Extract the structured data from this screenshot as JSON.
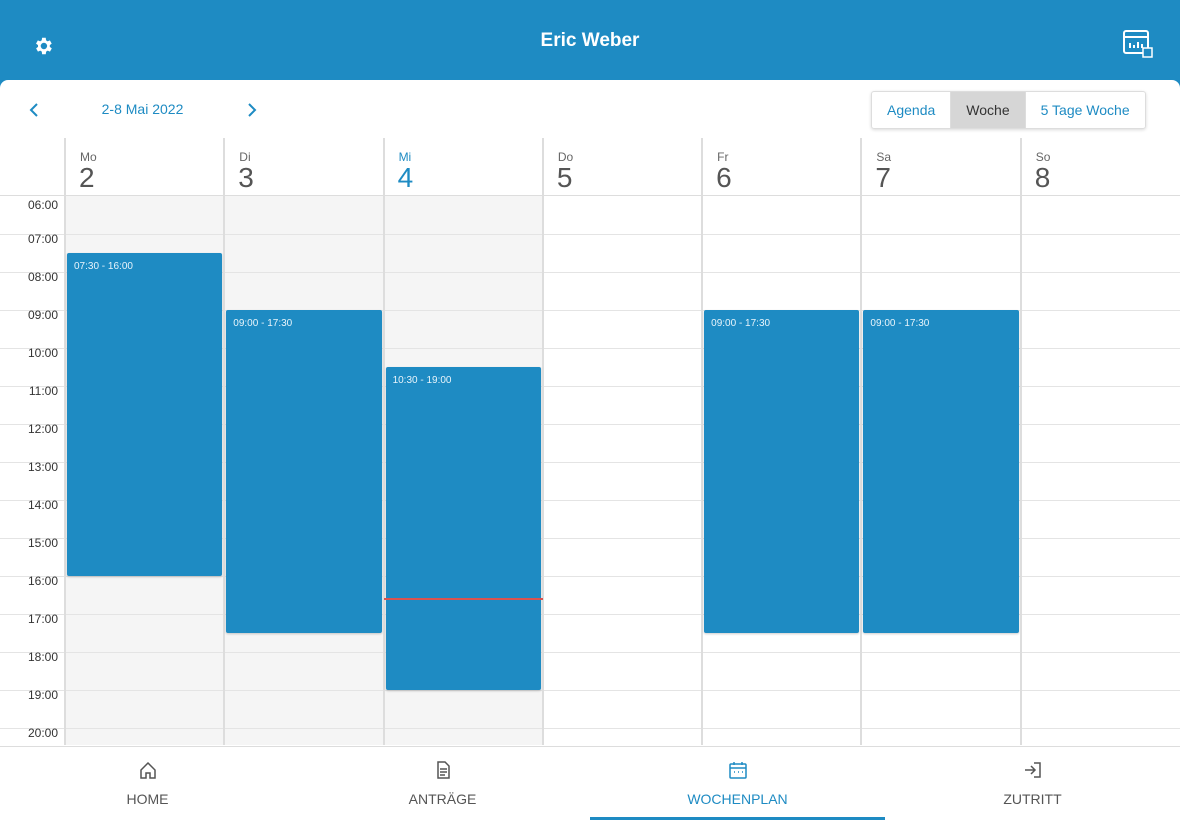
{
  "header": {
    "title": "Eric Weber"
  },
  "toolbar": {
    "date_range": "2-8 Mai 2022",
    "views": [
      {
        "label": "Agenda"
      },
      {
        "label": "Woche",
        "active": true
      },
      {
        "label": "5 Tage Woche"
      }
    ]
  },
  "calendar": {
    "hours": [
      "06:00",
      "07:00",
      "08:00",
      "09:00",
      "10:00",
      "11:00",
      "12:00",
      "13:00",
      "14:00",
      "15:00",
      "16:00",
      "17:00",
      "18:00",
      "19:00",
      "20:00"
    ],
    "days": [
      {
        "weekday": "Mo",
        "date": "2",
        "past": true,
        "event": "07:30 - 16:00"
      },
      {
        "weekday": "Di",
        "date": "3",
        "past": true,
        "event": "09:00 - 17:30"
      },
      {
        "weekday": "Mi",
        "date": "4",
        "past": true,
        "today": true,
        "event": "10:30 - 19:00"
      },
      {
        "weekday": "Do",
        "date": "5"
      },
      {
        "weekday": "Fr",
        "date": "6",
        "event": "09:00 - 17:30"
      },
      {
        "weekday": "Sa",
        "date": "7",
        "event": "09:00 - 17:30"
      },
      {
        "weekday": "So",
        "date": "8"
      }
    ]
  },
  "nav": {
    "items": [
      {
        "label": "HOME"
      },
      {
        "label": "ANTRÄGE"
      },
      {
        "label": "WOCHENPLAN",
        "active": true
      },
      {
        "label": "ZUTRITT"
      }
    ]
  }
}
